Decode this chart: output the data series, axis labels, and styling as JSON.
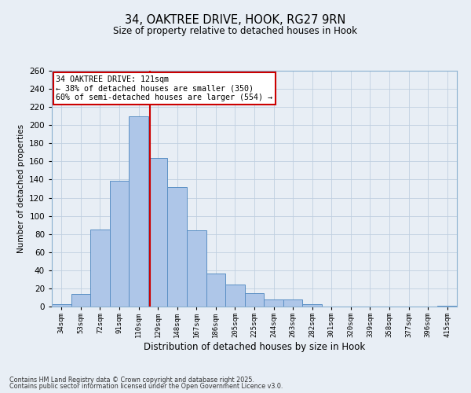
{
  "title": "34, OAKTREE DRIVE, HOOK, RG27 9RN",
  "subtitle": "Size of property relative to detached houses in Hook",
  "xlabel": "Distribution of detached houses by size in Hook",
  "ylabel": "Number of detached properties",
  "bin_labels": [
    "34sqm",
    "53sqm",
    "72sqm",
    "91sqm",
    "110sqm",
    "129sqm",
    "148sqm",
    "167sqm",
    "186sqm",
    "205sqm",
    "225sqm",
    "244sqm",
    "263sqm",
    "282sqm",
    "301sqm",
    "320sqm",
    "339sqm",
    "358sqm",
    "377sqm",
    "396sqm",
    "415sqm"
  ],
  "bar_values": [
    3,
    14,
    85,
    139,
    210,
    164,
    132,
    84,
    36,
    24,
    15,
    8,
    8,
    3,
    0,
    0,
    0,
    0,
    0,
    0,
    1
  ],
  "bar_color": "#aec6e8",
  "bar_edge_color": "#5a8fc4",
  "vline_color": "#cc0000",
  "annotation_text": "34 OAKTREE DRIVE: 121sqm\n← 38% of detached houses are smaller (350)\n60% of semi-detached houses are larger (554) →",
  "annotation_box_edgecolor": "#cc0000",
  "annotation_box_facecolor": "#ffffff",
  "ylim": [
    0,
    260
  ],
  "yticks": [
    0,
    20,
    40,
    60,
    80,
    100,
    120,
    140,
    160,
    180,
    200,
    220,
    240,
    260
  ],
  "grid_color": "#c0cfe0",
  "bg_color": "#e8eef5",
  "footer_line1": "Contains HM Land Registry data © Crown copyright and database right 2025.",
  "footer_line2": "Contains public sector information licensed under the Open Government Licence v3.0."
}
